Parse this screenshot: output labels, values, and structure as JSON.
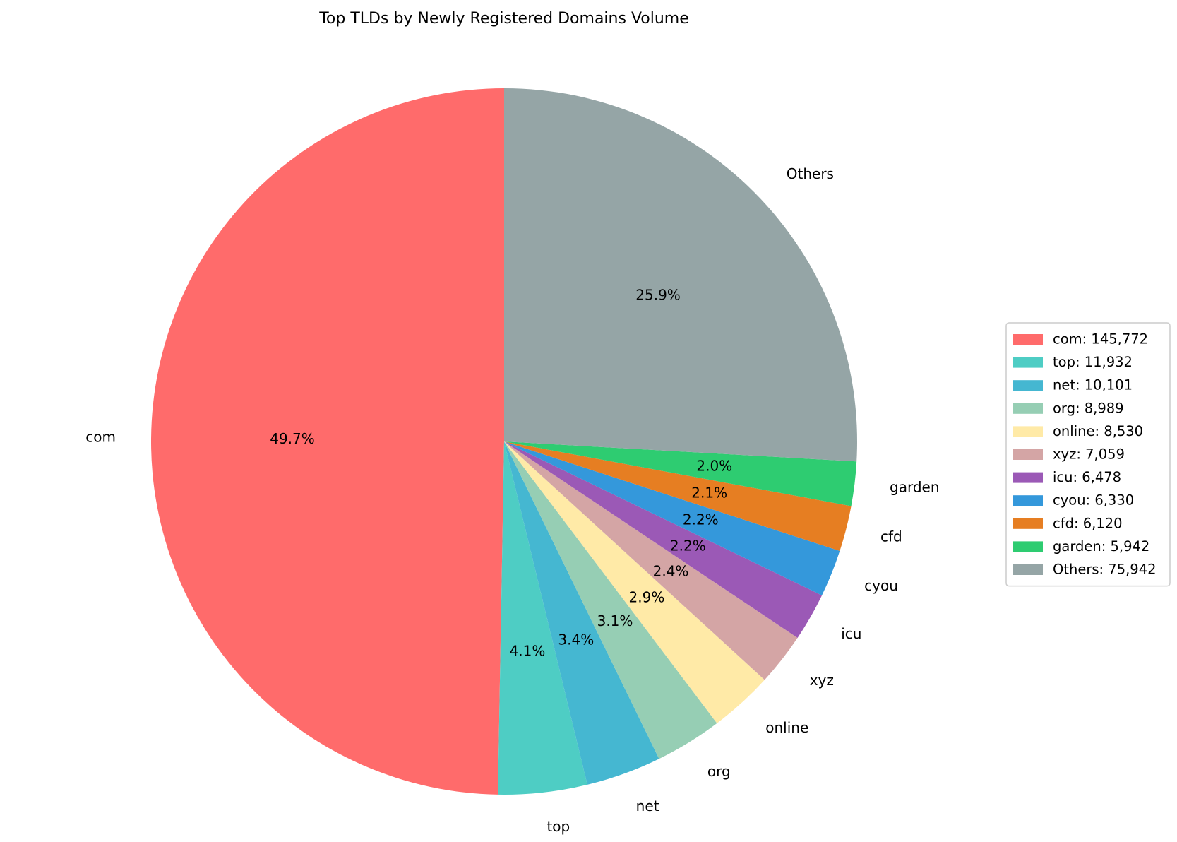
{
  "chart_data": {
    "type": "pie",
    "title": "Top TLDs by Newly Registered Domains Volume",
    "start_angle_deg": 90,
    "direction": "counterclockwise",
    "legend_position": "right",
    "slices": [
      {
        "label": "com",
        "value": 145772,
        "value_text": "145,772",
        "pct": "49.7%",
        "color": "#ff6b6b"
      },
      {
        "label": "top",
        "value": 11932,
        "value_text": "11,932",
        "pct": "4.1%",
        "color": "#4ecdc4"
      },
      {
        "label": "net",
        "value": 10101,
        "value_text": "10,101",
        "pct": "3.4%",
        "color": "#45b7d1"
      },
      {
        "label": "org",
        "value": 8989,
        "value_text": "8,989",
        "pct": "3.1%",
        "color": "#96ceb4"
      },
      {
        "label": "online",
        "value": 8530,
        "value_text": "8,530",
        "pct": "2.9%",
        "color": "#ffeaa7"
      },
      {
        "label": "xyz",
        "value": 7059,
        "value_text": "7,059",
        "pct": "2.4%",
        "color": "#d4a5a5"
      },
      {
        "label": "icu",
        "value": 6478,
        "value_text": "6,478",
        "pct": "2.2%",
        "color": "#9b59b6"
      },
      {
        "label": "cyou",
        "value": 6330,
        "value_text": "6,330",
        "pct": "2.2%",
        "color": "#3498db"
      },
      {
        "label": "cfd",
        "value": 6120,
        "value_text": "6,120",
        "pct": "2.1%",
        "color": "#e67e22"
      },
      {
        "label": "garden",
        "value": 5942,
        "value_text": "5,942",
        "pct": "2.0%",
        "color": "#2ecc71"
      },
      {
        "label": "Others",
        "value": 75942,
        "value_text": "75,942",
        "pct": "25.9%",
        "color": "#95a5a6"
      }
    ]
  }
}
